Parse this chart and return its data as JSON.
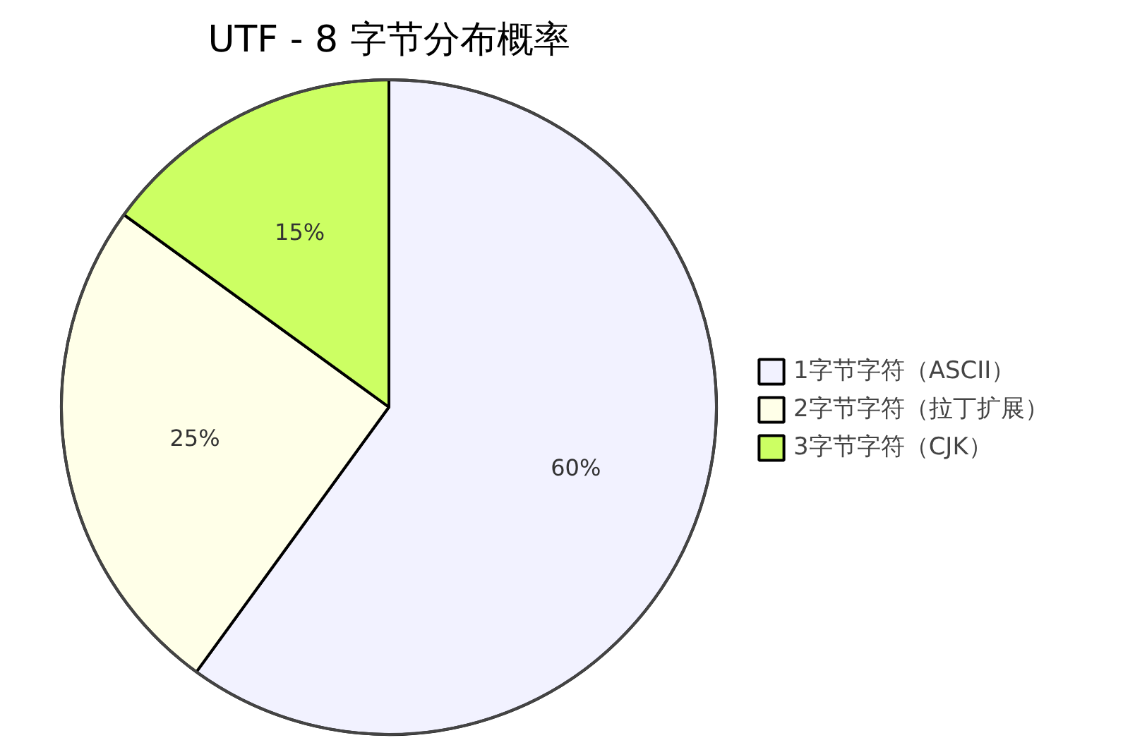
{
  "chart_data": {
    "type": "pie",
    "title": "UTF - 8 字节分布概率",
    "categories": [
      "1字节字符（ASCII）",
      "2字节字符（拉丁扩展）",
      "3字节字符（CJK）"
    ],
    "values": [
      60,
      25,
      15
    ],
    "colors": [
      "#f2f2ff",
      "#ffffe8",
      "#ccff63"
    ],
    "value_labels": [
      "60%",
      "25%",
      "15%"
    ],
    "legend": "right"
  }
}
